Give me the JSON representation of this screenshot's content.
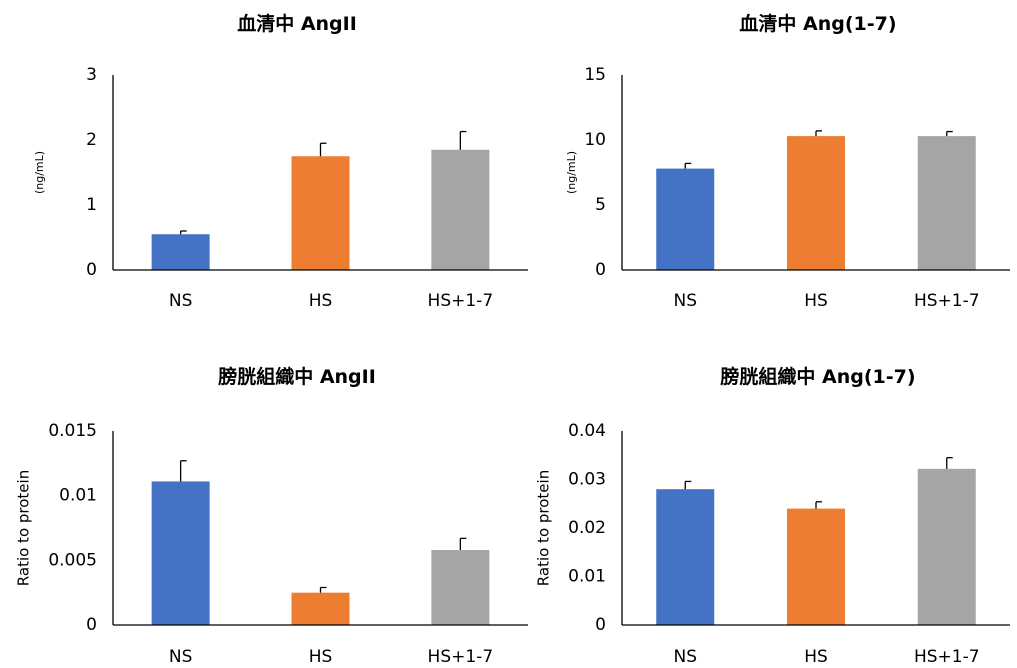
{
  "chart_data": [
    {
      "type": "bar",
      "title": "血清中 AngII",
      "ylabel": "(ng/mL)",
      "categories": [
        "NS",
        "HS",
        "HS+1-7"
      ],
      "values": [
        0.55,
        1.75,
        1.85
      ],
      "errors": [
        0.05,
        0.2,
        0.28
      ],
      "colors": [
        "#4472C4",
        "#ED7D31",
        "#A5A5A5"
      ],
      "ylim": [
        0,
        3
      ],
      "yticks": [
        0,
        1,
        2,
        3
      ],
      "ytick_labels": [
        "0",
        "1",
        "2",
        "3"
      ],
      "grid": false
    },
    {
      "type": "bar",
      "title": "血清中 Ang(1-7)",
      "ylabel": "(ng/mL)",
      "categories": [
        "NS",
        "HS",
        "HS+1-7"
      ],
      "values": [
        7.8,
        10.3,
        10.3
      ],
      "errors": [
        0.4,
        0.4,
        0.35
      ],
      "colors": [
        "#4472C4",
        "#ED7D31",
        "#A5A5A5"
      ],
      "ylim": [
        0,
        15
      ],
      "yticks": [
        0,
        5,
        10,
        15
      ],
      "ytick_labels": [
        "0",
        "5",
        "10",
        "15"
      ],
      "grid": false
    },
    {
      "type": "bar",
      "title": "膀胱組織中 AngII",
      "ylabel": "Ratio to protein",
      "categories": [
        "NS",
        "HS",
        "HS+1-7"
      ],
      "values": [
        0.0111,
        0.0025,
        0.0058
      ],
      "errors": [
        0.0016,
        0.0004,
        0.0009
      ],
      "colors": [
        "#4472C4",
        "#ED7D31",
        "#A5A5A5"
      ],
      "ylim": [
        0,
        0.015
      ],
      "yticks": [
        0,
        0.005,
        0.01,
        0.015
      ],
      "ytick_labels": [
        "0",
        "0.005",
        "0.01",
        "0.015"
      ],
      "grid": false
    },
    {
      "type": "bar",
      "title": "膀胱組織中 Ang(1-7)",
      "ylabel": "Ratio to protein",
      "categories": [
        "NS",
        "HS",
        "HS+1-7"
      ],
      "values": [
        0.028,
        0.024,
        0.0322
      ],
      "errors": [
        0.0016,
        0.0014,
        0.0023
      ],
      "colors": [
        "#4472C4",
        "#ED7D31",
        "#A5A5A5"
      ],
      "ylim": [
        0,
        0.04
      ],
      "yticks": [
        0,
        0.01,
        0.02,
        0.03,
        0.04
      ],
      "ytick_labels": [
        "0",
        "0.01",
        "0.02",
        "0.03",
        "0.04"
      ],
      "grid": false
    }
  ]
}
